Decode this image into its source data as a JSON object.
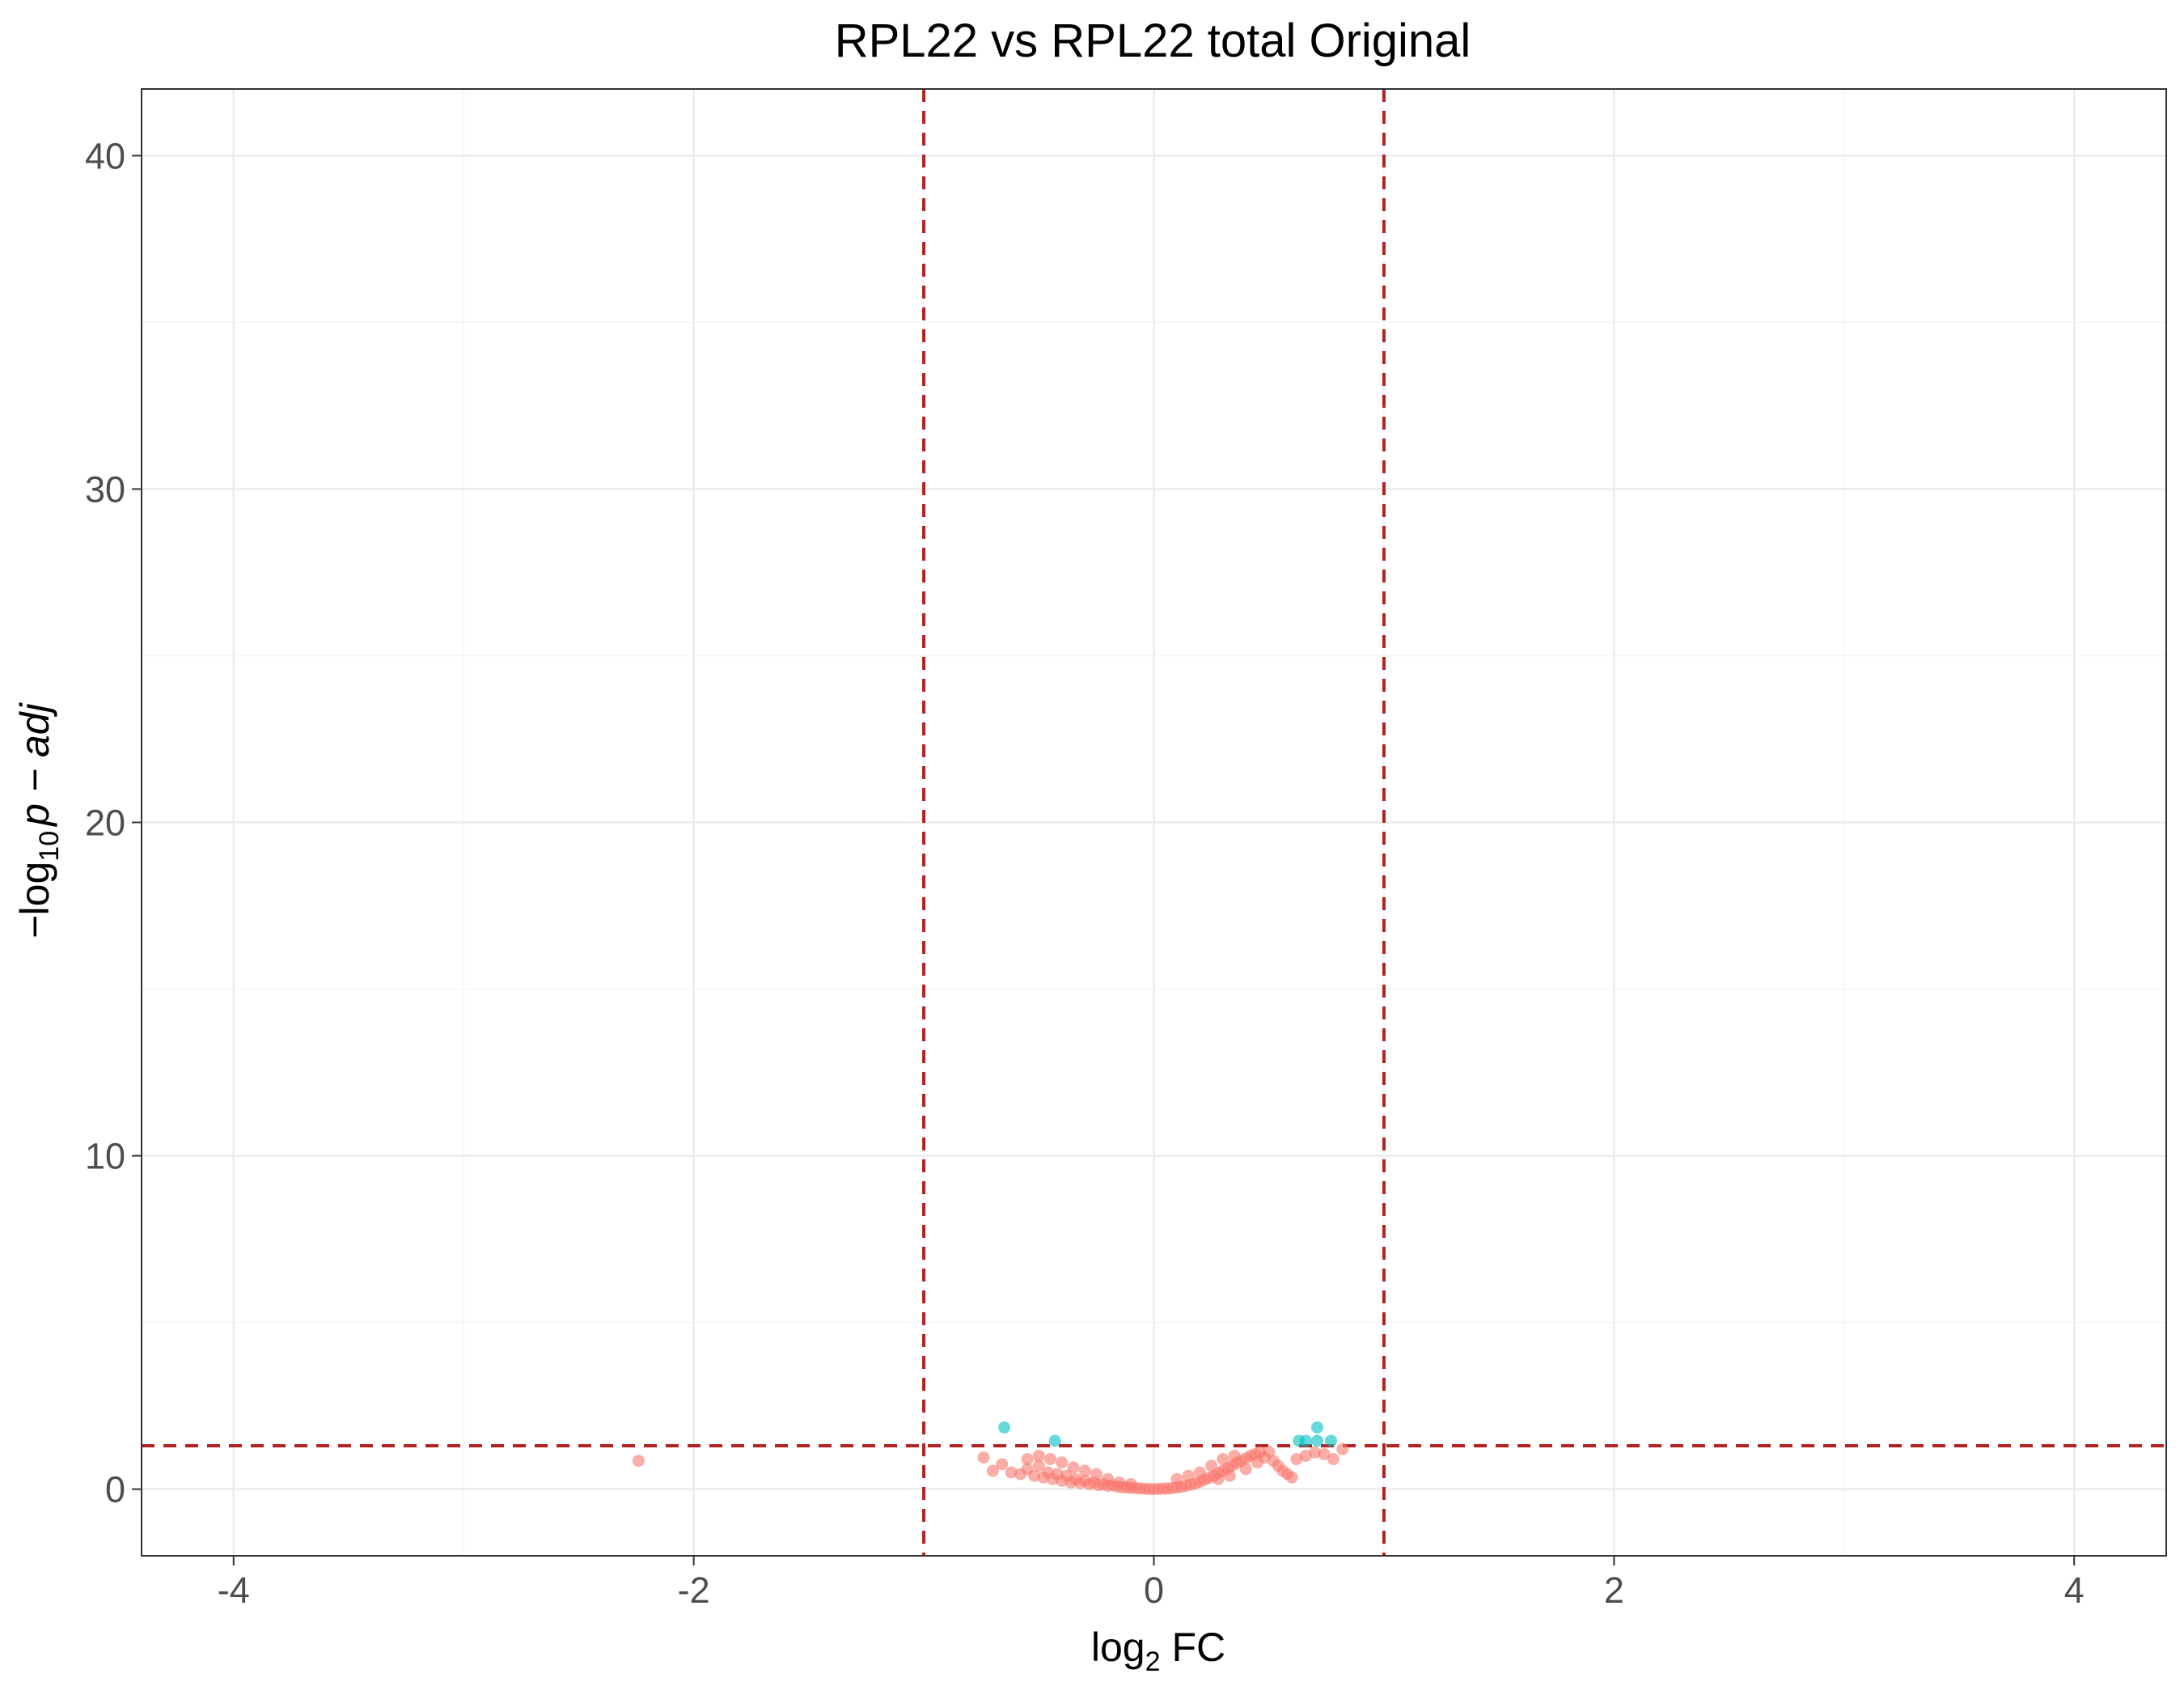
{
  "chart_data": {
    "type": "scatter",
    "title": "RPL22 vs RPL22 total Original",
    "xlabel": {
      "prefix": "log",
      "subscript": "2",
      "suffix": " FC"
    },
    "ylabel": {
      "minus": "−",
      "prefix": "log",
      "subscript": "10",
      "suffix": "p − adj"
    },
    "xlim": [
      -4.4,
      4.4
    ],
    "ylim": [
      -2,
      42
    ],
    "x_ticks": [
      -4,
      -2,
      0,
      2,
      4
    ],
    "x_tick_labels": [
      "-4",
      "-2",
      "0",
      "2",
      "4"
    ],
    "y_ticks": [
      0,
      10,
      20,
      30,
      40
    ],
    "y_tick_labels": [
      "0",
      "10",
      "20",
      "30",
      "40"
    ],
    "grid": true,
    "thresholds": {
      "vertical": [
        -1,
        1
      ],
      "horizontal": 1.3,
      "color": "#b22222",
      "style": "dashed"
    },
    "series": [
      {
        "color": "#f8766d",
        "opacity": 0.6,
        "values": [
          [
            -2.24,
            0.85
          ],
          [
            -0.74,
            0.95
          ],
          [
            -0.7,
            0.55
          ],
          [
            -0.66,
            0.75
          ],
          [
            -0.62,
            0.5
          ],
          [
            -0.58,
            0.45
          ],
          [
            -0.55,
            0.6
          ],
          [
            -0.52,
            0.4
          ],
          [
            -0.5,
            0.7
          ],
          [
            -0.48,
            0.35
          ],
          [
            -0.46,
            0.5
          ],
          [
            -0.44,
            0.3
          ],
          [
            -0.42,
            0.45
          ],
          [
            -0.4,
            0.25
          ],
          [
            -0.38,
            0.4
          ],
          [
            -0.36,
            0.2
          ],
          [
            -0.34,
            0.3
          ],
          [
            -0.32,
            0.18
          ],
          [
            -0.3,
            0.25
          ],
          [
            -0.28,
            0.15
          ],
          [
            -0.26,
            0.2
          ],
          [
            -0.24,
            0.12
          ],
          [
            -0.22,
            0.15
          ],
          [
            -0.2,
            0.1
          ],
          [
            -0.18,
            0.12
          ],
          [
            -0.16,
            0.08
          ],
          [
            -0.14,
            0.06
          ],
          [
            -0.12,
            0.05
          ],
          [
            -0.1,
            0.04
          ],
          [
            -0.08,
            0.03
          ],
          [
            -0.06,
            0.02
          ],
          [
            -0.04,
            0.01
          ],
          [
            -0.02,
            0.005
          ],
          [
            0.0,
            0.0
          ],
          [
            0.02,
            0.005
          ],
          [
            0.04,
            0.01
          ],
          [
            0.06,
            0.02
          ],
          [
            0.08,
            0.03
          ],
          [
            0.1,
            0.05
          ],
          [
            0.12,
            0.07
          ],
          [
            0.14,
            0.1
          ],
          [
            0.16,
            0.13
          ],
          [
            0.18,
            0.17
          ],
          [
            0.2,
            0.22
          ],
          [
            0.22,
            0.28
          ],
          [
            0.24,
            0.34
          ],
          [
            0.26,
            0.4
          ],
          [
            0.28,
            0.48
          ],
          [
            0.3,
            0.55
          ],
          [
            0.32,
            0.62
          ],
          [
            0.34,
            0.7
          ],
          [
            0.36,
            0.78
          ],
          [
            0.38,
            0.85
          ],
          [
            0.4,
            0.92
          ],
          [
            0.42,
            1.0
          ],
          [
            0.44,
            1.05
          ],
          [
            0.46,
            1.1
          ],
          [
            0.48,
            0.95
          ],
          [
            0.5,
            1.12
          ],
          [
            0.52,
            0.85
          ],
          [
            0.54,
            0.7
          ],
          [
            0.56,
            0.55
          ],
          [
            0.58,
            0.45
          ],
          [
            0.6,
            0.35
          ],
          [
            0.62,
            0.9
          ],
          [
            0.66,
            1.0
          ],
          [
            0.7,
            1.1
          ],
          [
            0.74,
            1.05
          ],
          [
            0.78,
            0.9
          ],
          [
            0.82,
            1.2
          ],
          [
            0.3,
            0.9
          ],
          [
            0.35,
            1.0
          ],
          [
            0.4,
            0.6
          ],
          [
            0.45,
            0.8
          ],
          [
            0.25,
            0.7
          ],
          [
            0.2,
            0.5
          ],
          [
            0.15,
            0.4
          ],
          [
            0.1,
            0.3
          ],
          [
            0.28,
            0.3
          ],
          [
            0.33,
            0.4
          ],
          [
            -0.45,
            0.9
          ],
          [
            -0.4,
            0.8
          ],
          [
            -0.35,
            0.65
          ],
          [
            -0.3,
            0.55
          ],
          [
            -0.25,
            0.45
          ],
          [
            -0.5,
            1.0
          ],
          [
            -0.55,
            0.9
          ],
          [
            -0.2,
            0.3
          ],
          [
            -0.15,
            0.2
          ],
          [
            -0.1,
            0.15
          ]
        ]
      },
      {
        "color": "#00bfc4",
        "opacity": 0.6,
        "values": [
          [
            -0.65,
            1.85
          ],
          [
            -0.43,
            1.45
          ],
          [
            0.63,
            1.45
          ],
          [
            0.66,
            1.45
          ],
          [
            0.71,
            1.85
          ],
          [
            0.71,
            1.45
          ],
          [
            0.77,
            1.45
          ]
        ]
      }
    ]
  }
}
